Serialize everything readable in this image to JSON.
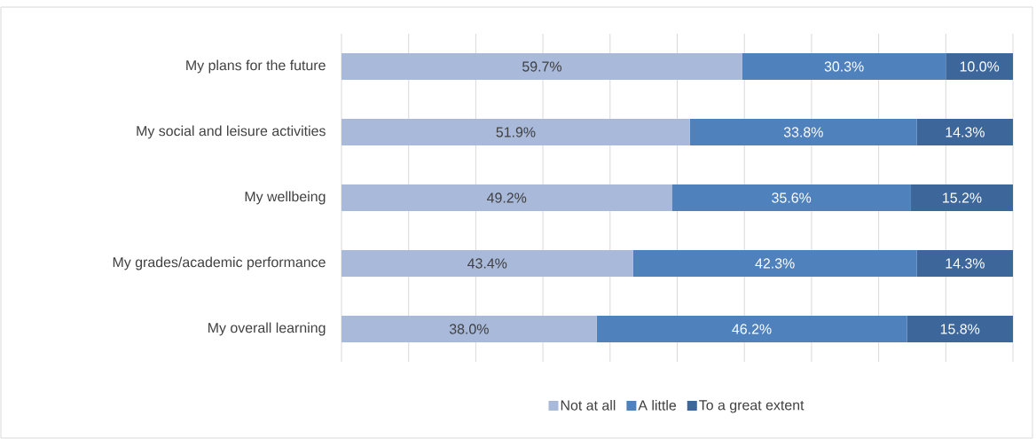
{
  "chart_data": {
    "type": "bar",
    "orientation": "horizontal",
    "stacked": true,
    "categories": [
      "My plans for the future",
      "My social and leisure activities",
      "My wellbeing",
      "My grades/academic performance",
      "My overall learning"
    ],
    "series": [
      {
        "name": "Not at all",
        "color": "#a9b9d9",
        "values": [
          59.7,
          51.9,
          49.2,
          43.4,
          38.0
        ],
        "value_labels": [
          "59.7%",
          "51.9%",
          "49.2%",
          "43.4%",
          "38.0%"
        ]
      },
      {
        "name": "A little",
        "color": "#4f81bd",
        "values": [
          30.3,
          33.8,
          35.6,
          42.3,
          46.2
        ],
        "value_labels": [
          "30.3%",
          "33.8%",
          "35.6%",
          "42.3%",
          "46.2%"
        ]
      },
      {
        "name": "To a great extent",
        "color": "#3d679b",
        "values": [
          10.0,
          14.3,
          15.2,
          14.3,
          15.8
        ],
        "value_labels": [
          "10.0%",
          "14.3%",
          "15.2%",
          "14.3%",
          "15.8%"
        ]
      }
    ],
    "xlim": [
      0,
      100
    ],
    "xticks": [
      {
        "value": 0,
        "label": null
      },
      {
        "value": 10,
        "label": null
      },
      {
        "value": 20,
        "label": null
      },
      {
        "value": 30,
        "label": null
      },
      {
        "value": 40,
        "label": null
      },
      {
        "value": 50,
        "label": null
      },
      {
        "value": 60,
        "label": null
      },
      {
        "value": 70,
        "label": null
      },
      {
        "value": 80,
        "label": null
      },
      {
        "value": 90,
        "label": null
      },
      {
        "value": 100,
        "label": null
      }
    ],
    "grid": "x",
    "legend": "bottom",
    "tick_labels": "y"
  }
}
